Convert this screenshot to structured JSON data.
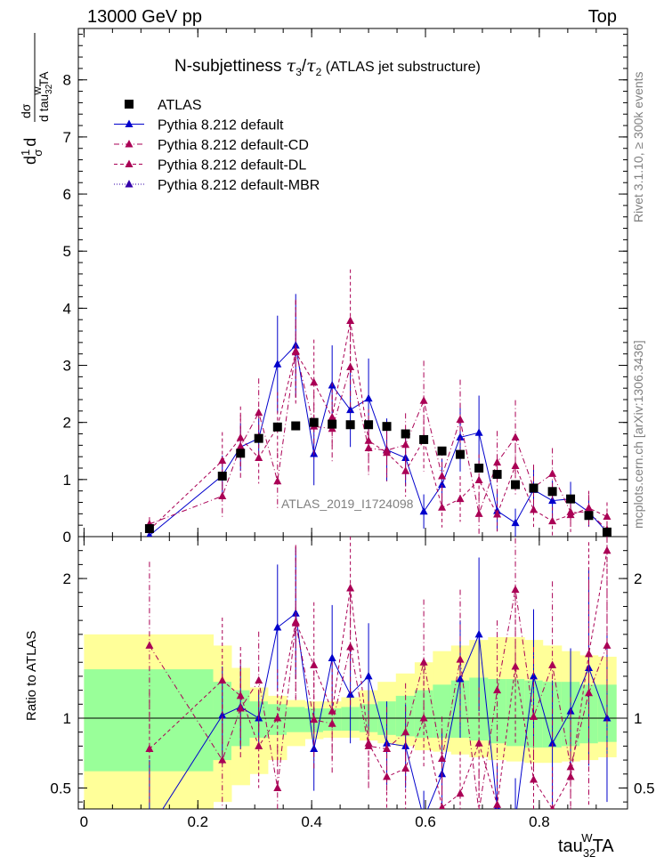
{
  "header": {
    "left": "13000 GeV pp",
    "right": "Top",
    "title_main": "N-subjettiness ",
    "title_tau3": "τ",
    "title_sub3": "3",
    "title_slash": "/",
    "title_tau2": "τ",
    "title_sub2": "2",
    "title_tail": " (ATLAS jet substructure)"
  },
  "side_text": {
    "rivet": "Rivet 3.1.10, ≥ 300k events",
    "mcplots": "mcplots.cern.ch [arXiv:1306.3436]"
  },
  "watermark": "ATLAS_2019_I1724098",
  "ylabel_top": {
    "d1": "d",
    "one": "1",
    "sigma": "σ",
    "d2": "d",
    "dsigma": "dσ",
    "dtau": "d tau",
    "sub": "32",
    "sup": "W",
    "ta": "TA"
  },
  "ylabel_bottom": "Ratio to ATLAS",
  "xlabel": {
    "base": "tau",
    "sub": "32",
    "sup": "W",
    "tail": "TA"
  },
  "legend": [
    {
      "label": "ATLAS",
      "color": "#000000",
      "marker": "square",
      "dash": "none"
    },
    {
      "label": "Pythia 8.212 default",
      "color": "#0000cc",
      "marker": "triangle",
      "dash": "solid"
    },
    {
      "label": "Pythia 8.212 default-CD",
      "color": "#aa0055",
      "marker": "triangle",
      "dash": "dashdot"
    },
    {
      "label": "Pythia 8.212 default-DL",
      "color": "#aa0055",
      "marker": "triangle",
      "dash": "dashed"
    },
    {
      "label": "Pythia 8.212 default-MBR",
      "color": "#3300aa",
      "marker": "triangle",
      "dash": "dotted"
    }
  ],
  "colors": {
    "band_inner": "#99ff99",
    "band_outer": "#ffff99",
    "atlas": "#000000",
    "default": "#0000cc",
    "cd": "#aa0055",
    "dl": "#aa0055",
    "mbr": "#3300aa"
  },
  "chart_data": {
    "type": "scatter",
    "x_range": [
      -0.01,
      0.955
    ],
    "xticks": [
      0,
      0.2,
      0.4,
      0.6,
      0.8
    ],
    "xtick_labels": [
      "0",
      "0.2",
      "0.4",
      "0.6",
      "0.8"
    ],
    "main": {
      "ylim": [
        0,
        8.9
      ],
      "yticks": [
        0,
        1,
        2,
        3,
        4,
        5,
        6,
        7,
        8
      ],
      "ytick_labels": [
        "0",
        "1",
        "2",
        "3",
        "4",
        "5",
        "6",
        "7",
        "8"
      ]
    },
    "ratio": {
      "ylim": [
        0.35,
        2.3
      ],
      "yticks": [
        0.5,
        1,
        2
      ],
      "ytick_labels": [
        "0.5",
        "1",
        "2"
      ]
    },
    "x": [
      0.115,
      0.243,
      0.275,
      0.307,
      0.34,
      0.372,
      0.404,
      0.436,
      0.468,
      0.5,
      0.532,
      0.565,
      0.597,
      0.629,
      0.661,
      0.694,
      0.726,
      0.758,
      0.79,
      0.823,
      0.855,
      0.887,
      0.919
    ],
    "atlas": [
      0.14,
      1.06,
      1.46,
      1.72,
      1.92,
      1.94,
      2.0,
      1.97,
      1.96,
      1.96,
      1.93,
      1.8,
      1.7,
      1.5,
      1.44,
      1.2,
      1.09,
      0.91,
      0.85,
      0.79,
      0.66,
      0.37,
      0.08
    ],
    "band_edges": [
      0.0,
      0.227,
      0.259,
      0.291,
      0.323,
      0.356,
      0.388,
      0.42,
      0.452,
      0.484,
      0.516,
      0.548,
      0.581,
      0.613,
      0.645,
      0.677,
      0.71,
      0.742,
      0.774,
      0.806,
      0.839,
      0.871,
      0.903,
      0.935
    ],
    "band_inner": [
      [
        0.62,
        1.35
      ],
      [
        0.7,
        1.26
      ],
      [
        0.8,
        1.2
      ],
      [
        0.86,
        1.12
      ],
      [
        0.88,
        1.1
      ],
      [
        0.9,
        1.08
      ],
      [
        0.9,
        1.07
      ],
      [
        0.91,
        1.07
      ],
      [
        0.91,
        1.08
      ],
      [
        0.9,
        1.1
      ],
      [
        0.88,
        1.12
      ],
      [
        0.87,
        1.16
      ],
      [
        0.86,
        1.2
      ],
      [
        0.86,
        1.24
      ],
      [
        0.86,
        1.27
      ],
      [
        0.84,
        1.29
      ],
      [
        0.82,
        1.28
      ],
      [
        0.8,
        1.28
      ],
      [
        0.79,
        1.27
      ],
      [
        0.79,
        1.26
      ],
      [
        0.8,
        1.26
      ],
      [
        0.82,
        1.24
      ],
      [
        0.83,
        1.24
      ]
    ],
    "band_outer": [
      [
        0.35,
        1.6
      ],
      [
        0.4,
        1.52
      ],
      [
        0.52,
        1.36
      ],
      [
        0.6,
        1.22
      ],
      [
        0.7,
        1.16
      ],
      [
        0.8,
        1.13
      ],
      [
        0.85,
        1.12
      ],
      [
        0.86,
        1.12
      ],
      [
        0.86,
        1.15
      ],
      [
        0.84,
        1.2
      ],
      [
        0.82,
        1.26
      ],
      [
        0.8,
        1.32
      ],
      [
        0.77,
        1.4
      ],
      [
        0.76,
        1.48
      ],
      [
        0.74,
        1.52
      ],
      [
        0.72,
        1.56
      ],
      [
        0.7,
        1.58
      ],
      [
        0.69,
        1.58
      ],
      [
        0.68,
        1.56
      ],
      [
        0.68,
        1.52
      ],
      [
        0.69,
        1.48
      ],
      [
        0.7,
        1.45
      ],
      [
        0.72,
        1.44
      ]
    ],
    "series": [
      {
        "name": "Pythia 8.212 default",
        "key": "default",
        "y": [
          0.02,
          1.07,
          1.57,
          1.72,
          3.02,
          3.35,
          1.45,
          2.65,
          2.22,
          2.42,
          1.52,
          1.38,
          0.44,
          0.91,
          1.74,
          1.82,
          0.45,
          0.24,
          0.82,
          0.63,
          0.66,
          0.43,
          0.08
        ],
        "err": [
          0.05,
          0.35,
          0.42,
          0.35,
          0.85,
          0.9,
          0.55,
          0.7,
          0.65,
          0.7,
          0.55,
          0.5,
          0.3,
          0.45,
          0.6,
          0.65,
          0.35,
          0.25,
          0.4,
          0.35,
          0.3,
          0.25,
          0.08
        ],
        "ratio": [
          0.2,
          1.02,
          1.08,
          1.0,
          1.65,
          1.75,
          0.78,
          1.43,
          1.17,
          1.3,
          0.82,
          0.8,
          0.28,
          0.6,
          1.28,
          1.6,
          0.36,
          0.27,
          1.3,
          0.82,
          1.05,
          1.36,
          1.0
        ],
        "rerr": [
          0.5,
          0.35,
          0.3,
          0.2,
          0.45,
          0.47,
          0.3,
          0.38,
          0.35,
          0.38,
          0.3,
          0.3,
          0.2,
          0.3,
          0.42,
          0.55,
          0.3,
          0.3,
          0.48,
          0.45,
          0.45,
          0.7,
          0.6
        ]
      },
      {
        "name": "Pythia 8.212 default-CD",
        "key": "cd",
        "y": [
          0.22,
          0.71,
          1.58,
          2.17,
          0.97,
          3.25,
          1.93,
          1.89,
          2.97,
          1.55,
          1.51,
          1.61,
          2.38,
          1.06,
          2.05,
          0.4,
          1.3,
          1.74,
          0.86,
          1.1,
          0.43,
          0.43,
          0.12
        ],
        "err": [
          0.12,
          0.4,
          0.55,
          0.6,
          0.5,
          0.9,
          0.6,
          0.6,
          0.8,
          0.5,
          0.5,
          0.55,
          0.7,
          0.45,
          0.7,
          0.35,
          0.55,
          0.65,
          0.4,
          0.45,
          0.3,
          0.3,
          0.12
        ],
        "ratio": [
          1.52,
          0.7,
          1.07,
          1.27,
          0.5,
          1.68,
          0.99,
          0.96,
          1.51,
          0.8,
          0.78,
          0.9,
          1.4,
          0.71,
          1.42,
          0.33,
          1.2,
          1.92,
          1.01,
          1.38,
          0.65,
          1.18,
          1.52
        ],
        "rerr": [
          0.6,
          0.4,
          0.35,
          0.35,
          0.3,
          0.55,
          0.35,
          0.35,
          0.45,
          0.3,
          0.3,
          0.35,
          0.45,
          0.3,
          0.5,
          0.3,
          0.5,
          0.7,
          0.5,
          0.6,
          0.5,
          0.8,
          0.8
        ]
      },
      {
        "name": "Pythia 8.212 default-DL",
        "key": "dl",
        "y": [
          0.12,
          1.33,
          1.73,
          1.38,
          1.93,
          3.23,
          2.7,
          2.09,
          3.78,
          1.68,
          1.47,
          1.15,
          1.69,
          0.51,
          0.66,
          0.99,
          0.39,
          1.24,
          0.47,
          0.27,
          0.38,
          0.5,
          0.35
        ],
        "err": [
          0.1,
          0.5,
          0.55,
          0.45,
          0.6,
          0.9,
          0.75,
          0.6,
          0.9,
          0.55,
          0.5,
          0.45,
          0.55,
          0.35,
          0.4,
          0.45,
          0.3,
          0.5,
          0.3,
          0.25,
          0.3,
          0.3,
          0.25
        ],
        "ratio": [
          0.78,
          1.27,
          1.16,
          0.8,
          1.0,
          1.69,
          1.38,
          1.05,
          1.93,
          0.82,
          0.58,
          0.64,
          1.0,
          0.36,
          0.46,
          0.82,
          0.38,
          1.37,
          0.56,
          0.35,
          0.58,
          1.46,
          2.2
        ],
        "rerr": [
          0.4,
          0.45,
          0.35,
          0.3,
          0.35,
          0.55,
          0.45,
          0.35,
          0.55,
          0.3,
          0.25,
          0.3,
          0.35,
          0.25,
          0.3,
          0.4,
          0.3,
          0.55,
          0.35,
          0.3,
          0.45,
          0.8,
          1.2
        ]
      },
      {
        "name": "Pythia 8.212 default-MBR",
        "key": "mbr",
        "y": [],
        "err": [],
        "ratio": [],
        "rerr": []
      }
    ]
  }
}
